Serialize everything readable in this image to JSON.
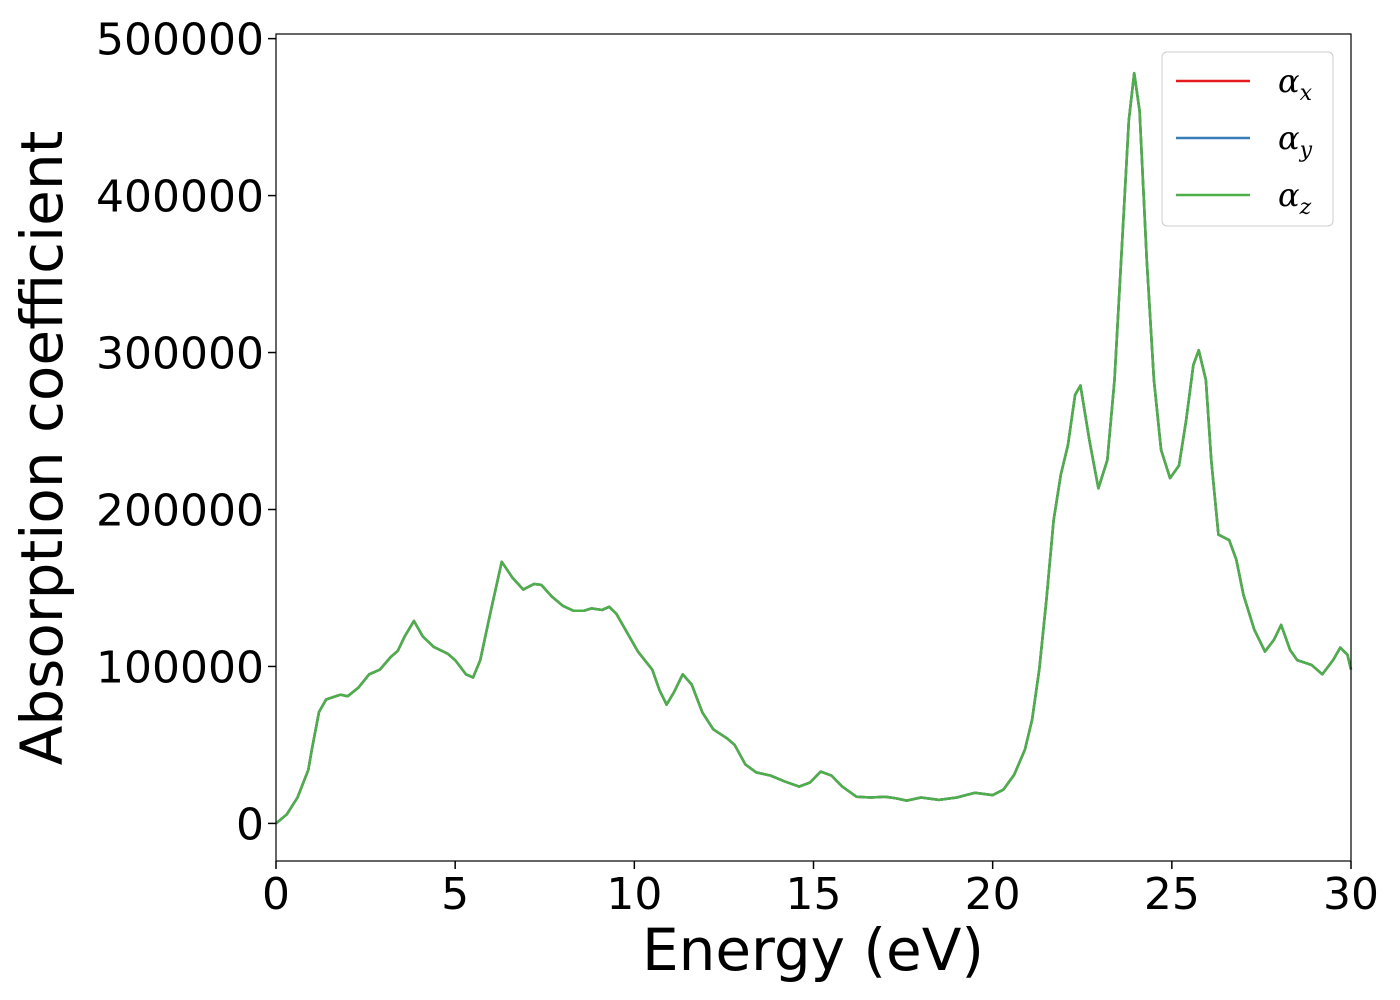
{
  "chart_data": {
    "type": "line",
    "xlabel": "Energy (eV)",
    "ylabel": "Absorption coefficient",
    "xlim": [
      0,
      30
    ],
    "ylim": [
      -23950,
      502950
    ],
    "xticks": [
      0,
      5,
      10,
      15,
      20,
      25,
      30
    ],
    "yticks": [
      0,
      100000,
      200000,
      300000,
      400000,
      500000
    ],
    "legend": "upper right",
    "x": [
      0,
      0.3,
      0.6,
      0.9,
      1.0,
      1.2,
      1.4,
      1.8,
      2.0,
      2.3,
      2.6,
      2.9,
      3.2,
      3.4,
      3.6,
      3.85,
      4.1,
      4.4,
      4.8,
      5.0,
      5.3,
      5.5,
      5.7,
      6.0,
      6.3,
      6.6,
      6.9,
      7.2,
      7.4,
      7.7,
      8.0,
      8.3,
      8.6,
      8.8,
      9.1,
      9.3,
      9.5,
      9.8,
      10.1,
      10.5,
      10.7,
      10.9,
      11.1,
      11.35,
      11.6,
      11.9,
      12.2,
      12.6,
      12.8,
      13.1,
      13.4,
      13.8,
      14.2,
      14.6,
      14.9,
      15.2,
      15.5,
      15.8,
      16.2,
      16.6,
      17.0,
      17.3,
      17.6,
      18.0,
      18.5,
      19.0,
      19.5,
      20.0,
      20.3,
      20.6,
      20.9,
      21.1,
      21.3,
      21.5,
      21.7,
      21.9,
      22.1,
      22.3,
      22.45,
      22.7,
      22.95,
      23.2,
      23.4,
      23.6,
      23.8,
      23.95,
      24.1,
      24.3,
      24.5,
      24.7,
      24.95,
      25.2,
      25.4,
      25.6,
      25.75,
      25.95,
      26.1,
      26.3,
      26.6,
      26.8,
      27.0,
      27.3,
      27.6,
      27.85,
      28.05,
      28.3,
      28.5,
      28.9,
      29.2,
      29.5,
      29.7,
      29.9,
      30.0
    ],
    "series": [
      {
        "name": "αx",
        "color": "#e41a1c",
        "values": [
          0,
          5700,
          16500,
          34000,
          47000,
          71000,
          79000,
          82000,
          81000,
          86500,
          95000,
          98000,
          106000,
          110000,
          119500,
          129000,
          119000,
          112500,
          108000,
          104000,
          95000,
          93000,
          104000,
          136000,
          166700,
          156500,
          149000,
          152500,
          152000,
          144500,
          138700,
          135500,
          135500,
          137000,
          136000,
          138000,
          133500,
          121500,
          109500,
          98000,
          85000,
          75700,
          83300,
          95000,
          88500,
          70600,
          60000,
          54000,
          50000,
          37500,
          32500,
          30500,
          26700,
          23500,
          26000,
          33000,
          30500,
          23500,
          17000,
          16500,
          17000,
          16000,
          14500,
          16500,
          15000,
          16500,
          19500,
          18000,
          21500,
          31000,
          47000,
          66000,
          98000,
          142500,
          193000,
          222000,
          241000,
          273000,
          279000,
          244000,
          213500,
          231500,
          282500,
          365000,
          448000,
          478000,
          454000,
          359000,
          282500,
          238000,
          220000,
          228000,
          257000,
          292000,
          301500,
          282500,
          231500,
          184000,
          180500,
          168000,
          145500,
          123500,
          109500,
          117000,
          126500,
          110500,
          104000,
          101000,
          95000,
          104000,
          112000,
          107500,
          98000
        ]
      },
      {
        "name": "αy",
        "color": "#377eb8",
        "values": [
          0,
          5700,
          16500,
          34000,
          47000,
          71000,
          79000,
          82000,
          81000,
          86500,
          95000,
          98000,
          106000,
          110000,
          119500,
          129000,
          119000,
          112500,
          108000,
          104000,
          95000,
          93000,
          104000,
          136000,
          166700,
          156500,
          149000,
          152500,
          152000,
          144500,
          138700,
          135500,
          135500,
          137000,
          136000,
          138000,
          133500,
          121500,
          109500,
          98000,
          85000,
          75700,
          83300,
          95000,
          88500,
          70600,
          60000,
          54000,
          50000,
          37500,
          32500,
          30500,
          26700,
          23500,
          26000,
          33000,
          30500,
          23500,
          17000,
          16500,
          17000,
          16000,
          14500,
          16500,
          15000,
          16500,
          19500,
          18000,
          21500,
          31000,
          47000,
          66000,
          98000,
          142500,
          193000,
          222000,
          241000,
          273000,
          279000,
          244000,
          213500,
          231500,
          282500,
          365000,
          448000,
          478000,
          454000,
          359000,
          282500,
          238000,
          220000,
          228000,
          257000,
          292000,
          301500,
          282500,
          231500,
          184000,
          180500,
          168000,
          145500,
          123500,
          109500,
          117000,
          126500,
          110500,
          104000,
          101000,
          95000,
          104000,
          112000,
          107500,
          98000
        ]
      },
      {
        "name": "αz",
        "color": "#4daf4a",
        "values": [
          0,
          5700,
          16500,
          34000,
          47000,
          71000,
          79000,
          82000,
          81000,
          86500,
          95000,
          98000,
          106000,
          110000,
          119500,
          129000,
          119000,
          112500,
          108000,
          104000,
          95000,
          93000,
          104000,
          136000,
          166700,
          156500,
          149000,
          152500,
          152000,
          144500,
          138700,
          135500,
          135500,
          137000,
          136000,
          138000,
          133500,
          121500,
          109500,
          98000,
          85000,
          75700,
          83300,
          95000,
          88500,
          70600,
          60000,
          54000,
          50000,
          37500,
          32500,
          30500,
          26700,
          23500,
          26000,
          33000,
          30500,
          23500,
          17000,
          16500,
          17000,
          16000,
          14500,
          16500,
          15000,
          16500,
          19500,
          18000,
          21500,
          31000,
          47000,
          66000,
          98000,
          142500,
          193000,
          222000,
          241000,
          273000,
          279000,
          244000,
          213500,
          231500,
          282500,
          365000,
          448000,
          478000,
          454000,
          359000,
          282500,
          238000,
          220000,
          228000,
          257000,
          292000,
          301500,
          282500,
          231500,
          184000,
          180500,
          168000,
          145500,
          123500,
          109500,
          117000,
          126500,
          110500,
          104000,
          101000,
          95000,
          104000,
          112000,
          107500,
          98000
        ]
      }
    ]
  }
}
